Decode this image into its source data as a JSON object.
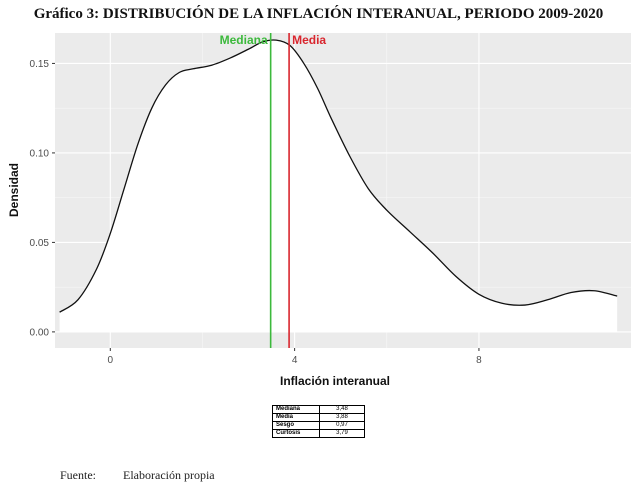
{
  "title": "Gráfico 3: DISTRIBUCIÓN DE LA INFLACIÓN INTERANUAL, PERIODO 2009-2020",
  "chart_data": {
    "type": "area",
    "xlabel": "Inflación interanual",
    "ylabel": "Densidad",
    "xlim": [
      -1.2,
      11.3
    ],
    "ylim": [
      -0.009,
      0.167
    ],
    "x_ticks": [
      0,
      4,
      8
    ],
    "y_ticks": [
      0.0,
      0.05,
      0.1,
      0.15
    ],
    "x_tick_labels": [
      "0",
      "4",
      "8"
    ],
    "y_tick_labels": [
      "0.00",
      "0.05",
      "0.10",
      "0.15"
    ],
    "grid": true,
    "series": [
      {
        "x": [
          -1.1,
          -0.7,
          -0.3,
          0.0,
          0.3,
          0.6,
          0.9,
          1.2,
          1.5,
          1.8,
          2.2,
          2.6,
          3.0,
          3.3,
          3.6,
          3.9,
          4.2,
          4.5,
          4.8,
          5.2,
          5.6,
          6.0,
          6.5,
          7.0,
          7.5,
          8.0,
          8.5,
          9.0,
          9.5,
          10.0,
          10.5,
          11.0
        ],
        "y": [
          0.011,
          0.018,
          0.035,
          0.055,
          0.08,
          0.105,
          0.125,
          0.138,
          0.145,
          0.147,
          0.149,
          0.153,
          0.158,
          0.162,
          0.163,
          0.16,
          0.15,
          0.136,
          0.119,
          0.098,
          0.08,
          0.068,
          0.056,
          0.044,
          0.031,
          0.021,
          0.016,
          0.015,
          0.018,
          0.022,
          0.023,
          0.02
        ]
      }
    ],
    "reference_lines": [
      {
        "label": "Mediana",
        "x": 3.48,
        "color": "#3cb93c"
      },
      {
        "label": "Media",
        "x": 3.88,
        "color": "#d9262e"
      }
    ]
  },
  "stats_table": [
    {
      "label": "Mediana",
      "value": "3,48"
    },
    {
      "label": "Media",
      "value": "3,88"
    },
    {
      "label": "Sesgo",
      "value": "0,97"
    },
    {
      "label": "Curtosis",
      "value": "3,79"
    }
  ],
  "source": {
    "label": "Fuente:",
    "text": "Elaboración propia"
  }
}
